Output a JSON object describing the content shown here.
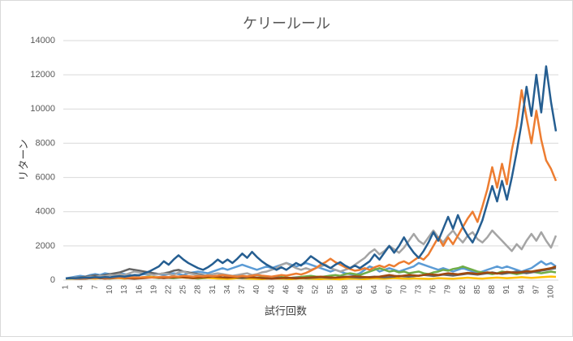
{
  "chart_data": {
    "type": "line",
    "title": "ケリールール",
    "x_label": "試行回数",
    "y_label": "リターン",
    "categories": [
      "1",
      null,
      null,
      "4",
      null,
      null,
      "7",
      null,
      null,
      "10",
      null,
      null,
      "13",
      null,
      null,
      "16",
      null,
      null,
      "19",
      null,
      null,
      "22",
      null,
      null,
      "25",
      null,
      null,
      "28",
      null,
      null,
      "31",
      null,
      null,
      "34",
      null,
      null,
      "37",
      null,
      null,
      "40",
      null,
      null,
      "43",
      null,
      null,
      "46",
      null,
      null,
      "49",
      null,
      null,
      "52",
      null,
      null,
      "55",
      null,
      null,
      "58",
      null,
      null,
      "61",
      null,
      null,
      "64",
      null,
      null,
      "67",
      null,
      null,
      "70",
      null,
      null,
      "73",
      null,
      null,
      "76",
      null,
      null,
      "79",
      null,
      null,
      "82",
      null,
      null,
      "85",
      null,
      null,
      "88",
      null,
      null,
      "91",
      null,
      null,
      "94",
      null,
      null,
      "97",
      null,
      null,
      "100",
      null
    ],
    "ylim": [
      0,
      14000
    ],
    "yticks": [
      0,
      2000,
      4000,
      6000,
      8000,
      10000,
      12000,
      14000
    ],
    "grid": true,
    "series": [
      {
        "color": "#5b9bd5",
        "values": [
          100,
          150,
          200,
          250,
          200,
          300,
          350,
          300,
          400,
          350,
          300,
          400,
          350,
          300,
          250,
          300,
          350,
          300,
          400,
          350,
          300,
          350,
          400,
          350,
          300,
          400,
          450,
          500,
          450,
          400,
          500,
          600,
          700,
          600,
          700,
          800,
          900,
          800,
          700,
          600,
          700,
          800,
          700,
          800,
          900,
          1000,
          900,
          800,
          900,
          1000,
          900,
          800,
          700,
          600,
          500,
          600,
          500,
          400,
          350,
          300,
          400,
          600,
          800,
          700,
          500,
          600,
          700,
          600,
          500,
          600,
          700,
          800,
          1000,
          900,
          800,
          700,
          600,
          700,
          600,
          500,
          600,
          700,
          600,
          500,
          400,
          500,
          600,
          700,
          800,
          700,
          800,
          700,
          600,
          500,
          600,
          700,
          900,
          1100,
          900,
          1000,
          800
        ]
      },
      {
        "color": "#70ad47",
        "values": [
          100,
          80,
          120,
          100,
          90,
          110,
          130,
          100,
          120,
          90,
          110,
          130,
          150,
          120,
          100,
          130,
          150,
          170,
          140,
          120,
          150,
          130,
          110,
          140,
          160,
          130,
          110,
          90,
          110,
          130,
          150,
          120,
          100,
          120,
          140,
          160,
          130,
          110,
          130,
          150,
          170,
          140,
          120,
          150,
          180,
          150,
          130,
          160,
          190,
          220,
          250,
          210,
          180,
          220,
          260,
          300,
          250,
          350,
          400,
          350,
          300,
          400,
          500,
          600,
          700,
          600,
          500,
          550,
          450,
          500,
          400,
          450,
          500,
          400,
          350,
          450,
          500,
          600,
          550,
          650,
          700,
          800,
          700,
          600,
          500,
          450,
          400,
          350,
          400,
          500,
          450,
          400,
          350,
          400,
          450,
          500,
          450,
          400,
          450,
          500,
          450
        ]
      },
      {
        "color": "#ffc000",
        "values": [
          100,
          90,
          80,
          100,
          120,
          100,
          90,
          110,
          130,
          150,
          130,
          110,
          90,
          110,
          130,
          150,
          170,
          200,
          180,
          160,
          140,
          160,
          190,
          170,
          150,
          130,
          110,
          130,
          150,
          130,
          110,
          90,
          80,
          70,
          90,
          110,
          100,
          90,
          80,
          70,
          60,
          80,
          100,
          90,
          80,
          70,
          60,
          80,
          100,
          90,
          80,
          70,
          60,
          80,
          70,
          60,
          50,
          70,
          90,
          80,
          70,
          60,
          80,
          100,
          90,
          80,
          100,
          120,
          100,
          90,
          80,
          100,
          90,
          80,
          70,
          90,
          110,
          100,
          90,
          80,
          100,
          120,
          140,
          120,
          100,
          90,
          110,
          130,
          150,
          130,
          110,
          130,
          150,
          170,
          150,
          130,
          150,
          170,
          190,
          210,
          190
        ]
      },
      {
        "color": "#636363",
        "values": [
          100,
          120,
          140,
          160,
          200,
          240,
          280,
          250,
          300,
          350,
          400,
          450,
          550,
          650,
          600,
          550,
          500,
          450,
          400,
          350,
          400,
          450,
          550,
          600,
          500,
          450,
          400,
          350,
          300,
          250,
          200,
          250,
          300,
          250,
          200,
          150,
          120,
          150,
          180,
          150,
          120,
          100,
          120,
          150,
          130,
          110,
          130,
          150,
          130,
          110,
          130,
          150,
          170,
          150,
          130,
          150,
          170,
          200,
          180,
          160,
          140,
          160,
          180,
          200,
          180,
          160,
          180,
          200,
          250,
          220,
          200,
          230,
          260,
          300,
          270,
          240,
          280,
          320,
          290,
          260,
          300,
          340,
          380,
          350,
          320,
          360,
          400,
          450,
          400,
          360,
          400,
          450,
          500,
          450,
          400,
          450,
          500,
          550,
          600,
          650,
          700
        ]
      },
      {
        "color": "#9e480e",
        "values": [
          100,
          110,
          90,
          80,
          90,
          110,
          130,
          110,
          90,
          100,
          120,
          140,
          120,
          100,
          80,
          100,
          120,
          140,
          160,
          140,
          120,
          140,
          160,
          180,
          160,
          140,
          120,
          140,
          160,
          180,
          200,
          180,
          160,
          140,
          160,
          180,
          200,
          180,
          160,
          140,
          120,
          100,
          80,
          100,
          120,
          140,
          120,
          100,
          120,
          140,
          160,
          180,
          200,
          180,
          160,
          140,
          160,
          180,
          200,
          220,
          200,
          180,
          160,
          180,
          200,
          250,
          300,
          250,
          220,
          260,
          300,
          280,
          250,
          300,
          350,
          320,
          300,
          350,
          400,
          370,
          340,
          380,
          420,
          400,
          360,
          400,
          450,
          420,
          380,
          430,
          480,
          450,
          420,
          470,
          520,
          500,
          550,
          600,
          650,
          700,
          800
        ]
      },
      {
        "color": "#a5a5a5",
        "values": [
          100,
          120,
          150,
          130,
          160,
          200,
          180,
          250,
          220,
          300,
          280,
          350,
          300,
          400,
          500,
          450,
          400,
          350,
          300,
          350,
          400,
          350,
          300,
          450,
          500,
          400,
          350,
          300,
          250,
          300,
          350,
          400,
          350,
          300,
          250,
          300,
          350,
          400,
          300,
          350,
          450,
          500,
          600,
          700,
          900,
          1000,
          850,
          700,
          600,
          700,
          600,
          700,
          800,
          900,
          700,
          600,
          500,
          600,
          700,
          900,
          1100,
          1300,
          1600,
          1800,
          1500,
          1700,
          2000,
          1800,
          1600,
          1900,
          2300,
          2700,
          2300,
          2100,
          2500,
          2900,
          2500,
          2200,
          2600,
          2900,
          2500,
          2200,
          2600,
          2800,
          2400,
          2200,
          2500,
          2900,
          2600,
          2300,
          2000,
          1700,
          2100,
          1800,
          2300,
          2700,
          2300,
          2800,
          2300,
          1900,
          2600
        ]
      },
      {
        "color": "#ed7d31",
        "values": [
          100,
          110,
          100,
          120,
          110,
          130,
          120,
          140,
          130,
          120,
          140,
          130,
          150,
          140,
          160,
          150,
          170,
          160,
          150,
          180,
          200,
          180,
          220,
          200,
          250,
          230,
          200,
          240,
          220,
          260,
          230,
          260,
          300,
          260,
          230,
          200,
          250,
          220,
          260,
          300,
          260,
          230,
          200,
          250,
          300,
          260,
          320,
          380,
          330,
          420,
          550,
          700,
          900,
          1050,
          1250,
          1050,
          900,
          750,
          650,
          550,
          600,
          700,
          600,
          750,
          850,
          750,
          900,
          800,
          1000,
          1100,
          950,
          1150,
          1350,
          1200,
          1500,
          2000,
          2500,
          2000,
          2500,
          2100,
          2600,
          3100,
          3600,
          4000,
          3400,
          4300,
          5300,
          6600,
          5400,
          6800,
          5600,
          7600,
          9000,
          11100,
          9500,
          8000,
          9900,
          8200,
          7000,
          6500,
          5800
        ]
      },
      {
        "color": "#255e91",
        "values": [
          100,
          120,
          110,
          130,
          150,
          140,
          170,
          150,
          180,
          160,
          200,
          230,
          200,
          250,
          300,
          280,
          400,
          500,
          650,
          800,
          1100,
          900,
          1200,
          1450,
          1200,
          1000,
          850,
          700,
          600,
          750,
          950,
          1200,
          1000,
          1200,
          1000,
          1250,
          1550,
          1300,
          1650,
          1350,
          1100,
          900,
          750,
          600,
          750,
          600,
          800,
          1000,
          850,
          1100,
          1400,
          1200,
          1000,
          850,
          700,
          900,
          1050,
          850,
          700,
          850,
          700,
          900,
          1100,
          1500,
          1200,
          1600,
          2000,
          1600,
          2000,
          2500,
          2000,
          1600,
          1300,
          1700,
          2200,
          2800,
          2300,
          3000,
          3700,
          3000,
          3800,
          3100,
          2600,
          2200,
          2800,
          3500,
          4500,
          5500,
          4600,
          5800,
          4700,
          6000,
          7500,
          9200,
          11300,
          9600,
          12000,
          9800,
          12500,
          10400,
          8700
        ]
      }
    ]
  }
}
